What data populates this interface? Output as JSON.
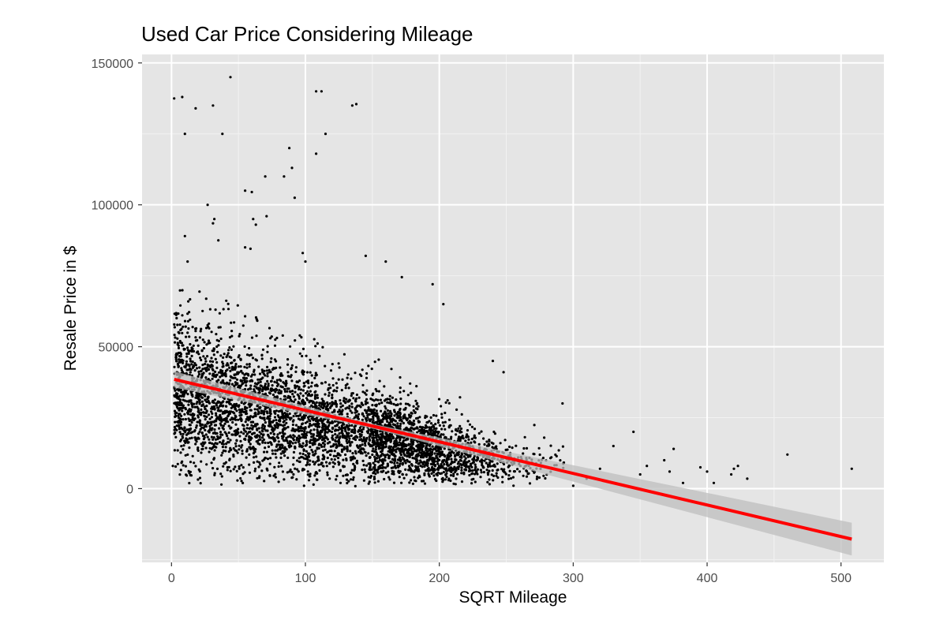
{
  "chart_data": {
    "type": "scatter",
    "title": "Used Car Price Considering Mileage",
    "xlabel": "SQRT Mileage",
    "ylabel": "Resale Price in $",
    "xlim": [
      -22,
      532
    ],
    "ylim": [
      -26000,
      153000
    ],
    "x_ticks": [
      0,
      100,
      200,
      300,
      400,
      500
    ],
    "y_ticks": [
      0,
      50000,
      100000,
      150000
    ],
    "x_tick_labels": [
      "0",
      "100",
      "200",
      "300",
      "400",
      "500"
    ],
    "y_tick_labels": [
      "0",
      "50000",
      "100000",
      "150000"
    ],
    "grid": true,
    "panel_background": "#e5e5e5",
    "point_color": "#000000",
    "point_count_approx": 4500,
    "trend_line": {
      "method": "linear",
      "color": "#ff0000",
      "ribbon_color": "#bdbdbd",
      "x": [
        2,
        508
      ],
      "y": [
        38500,
        -17800
      ]
    },
    "notable_points": [
      {
        "x": 2,
        "y": 137500
      },
      {
        "x": 8,
        "y": 138000
      },
      {
        "x": 10,
        "y": 125000
      },
      {
        "x": 18,
        "y": 134000
      },
      {
        "x": 31,
        "y": 135000
      },
      {
        "x": 38,
        "y": 125000
      },
      {
        "x": 44,
        "y": 145000
      },
      {
        "x": 108,
        "y": 140000
      },
      {
        "x": 112,
        "y": 140000
      },
      {
        "x": 115,
        "y": 125000
      },
      {
        "x": 108,
        "y": 118000
      },
      {
        "x": 135,
        "y": 135000
      },
      {
        "x": 138,
        "y": 135500
      },
      {
        "x": 88,
        "y": 120000
      },
      {
        "x": 90,
        "y": 113000
      },
      {
        "x": 92,
        "y": 102500
      },
      {
        "x": 70,
        "y": 110000
      },
      {
        "x": 84,
        "y": 110000
      },
      {
        "x": 55,
        "y": 105000
      },
      {
        "x": 60,
        "y": 104500
      },
      {
        "x": 27,
        "y": 100000
      },
      {
        "x": 32,
        "y": 95000
      },
      {
        "x": 31,
        "y": 93500
      },
      {
        "x": 61,
        "y": 95000
      },
      {
        "x": 71,
        "y": 96000
      },
      {
        "x": 63,
        "y": 93000
      },
      {
        "x": 10,
        "y": 89000
      },
      {
        "x": 35,
        "y": 87500
      },
      {
        "x": 55,
        "y": 85000
      },
      {
        "x": 59,
        "y": 84500
      },
      {
        "x": 98,
        "y": 83000
      },
      {
        "x": 100,
        "y": 80000
      },
      {
        "x": 145,
        "y": 82000
      },
      {
        "x": 160,
        "y": 80000
      },
      {
        "x": 12,
        "y": 80000
      },
      {
        "x": 172,
        "y": 74500
      },
      {
        "x": 195,
        "y": 72000
      },
      {
        "x": 203,
        "y": 65000
      },
      {
        "x": 248,
        "y": 41000
      },
      {
        "x": 240,
        "y": 45000
      },
      {
        "x": 292,
        "y": 30000
      },
      {
        "x": 345,
        "y": 20000
      },
      {
        "x": 350,
        "y": 5000
      },
      {
        "x": 355,
        "y": 8000
      },
      {
        "x": 368,
        "y": 10000
      },
      {
        "x": 372,
        "y": 6000
      },
      {
        "x": 375,
        "y": 14000
      },
      {
        "x": 382,
        "y": 2000
      },
      {
        "x": 395,
        "y": 7500
      },
      {
        "x": 400,
        "y": 6000
      },
      {
        "x": 405,
        "y": 2000
      },
      {
        "x": 418,
        "y": 5000
      },
      {
        "x": 420,
        "y": 7000
      },
      {
        "x": 423,
        "y": 8000
      },
      {
        "x": 430,
        "y": 3500
      },
      {
        "x": 460,
        "y": 12000
      },
      {
        "x": 508,
        "y": 7000
      },
      {
        "x": 1,
        "y": 8000
      },
      {
        "x": 300,
        "y": 1000
      },
      {
        "x": 310,
        "y": 3500
      },
      {
        "x": 320,
        "y": 7000
      },
      {
        "x": 330,
        "y": 15000
      }
    ]
  }
}
